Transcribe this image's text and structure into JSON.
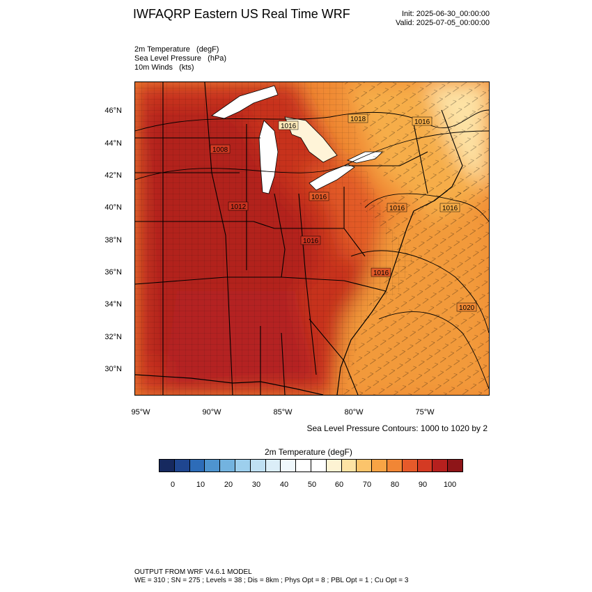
{
  "header": {
    "title": "IWFAQRP Eastern US Real Time WRF",
    "init": "Init: 2025-06-30_00:00:00",
    "valid": "Valid: 2025-07-05_00:00:00"
  },
  "fields": [
    "2m Temperature   (degF)",
    "Sea Level Pressure   (hPa)",
    "10m Winds   (kts)"
  ],
  "map": {
    "lat_labels": [
      "46°N",
      "44°N",
      "42°N",
      "40°N",
      "38°N",
      "36°N",
      "34°N",
      "32°N",
      "30°N"
    ],
    "lon_labels": [
      "95°W",
      "90°W",
      "85°W",
      "80°W",
      "75°W"
    ],
    "isobar_labels": [
      "1008",
      "1012",
      "1016",
      "1016",
      "1016",
      "1016",
      "1016",
      "1016",
      "1018",
      "1016",
      "1020"
    ],
    "colors": {
      "hot_dark": "#a61c1a",
      "hot": "#c0281e",
      "warm": "#e2502a",
      "orange": "#f08a34",
      "light_orange": "#f7b24c",
      "pale": "#fde9b8",
      "white": "#ffffff",
      "water": "#ffffff"
    }
  },
  "contour_note": "Sea Level Pressure Contours: 1000 to 1020 by 2",
  "colorbar": {
    "title": "2m Temperature  (degF)",
    "labels": [
      "0",
      "10",
      "20",
      "30",
      "40",
      "50",
      "60",
      "70",
      "80",
      "90",
      "100"
    ],
    "colors": [
      "#16295f",
      "#1f4690",
      "#2d6cb8",
      "#4e94cf",
      "#73b3df",
      "#9dcfed",
      "#bfe0f3",
      "#dbeef8",
      "#f0f8fc",
      "#ffffff",
      "#ffffff",
      "#fdf3d3",
      "#fde3a4",
      "#fbc46b",
      "#f8a445",
      "#f18635",
      "#e65a2a",
      "#d43a23",
      "#b6201e",
      "#8e1518"
    ]
  },
  "footer": {
    "line1": "OUTPUT FROM WRF V4.6.1 MODEL",
    "line2": "WE = 310 ; SN = 275 ; Levels = 38 ; Dis = 8km ; Phys Opt = 8 ; PBL Opt = 1 ; Cu Opt = 3"
  }
}
